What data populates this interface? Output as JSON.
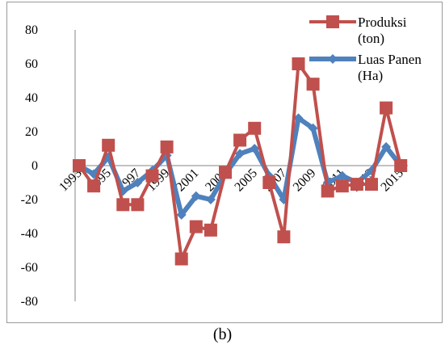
{
  "chart_data": {
    "type": "line",
    "title": "",
    "xlabel": "",
    "ylabel": "",
    "x": [
      "1993",
      "1994",
      "1995",
      "1996",
      "1997",
      "1998",
      "1999",
      "2000",
      "2001",
      "2002",
      "2003",
      "2004",
      "2005",
      "2006",
      "2007",
      "2008",
      "2009",
      "2010",
      "2011",
      "2012",
      "2013",
      "2014",
      "2015"
    ],
    "x_tick_labels": [
      "1993",
      "1995",
      "1997",
      "1999",
      "2001",
      "2003",
      "2005",
      "2007",
      "2009",
      "2011",
      "2013",
      "2015"
    ],
    "y_ticks": [
      80,
      60,
      40,
      20,
      0,
      -20,
      -40,
      -60,
      -80
    ],
    "ylim": [
      -80,
      80
    ],
    "grid": false,
    "legend_position": "top-right",
    "series": [
      {
        "name": "Luas Panen (Ha)",
        "legend_lines": [
          "Luas Panen",
          "(Ha)"
        ],
        "color": "#4f81bd",
        "marker": "diamond",
        "values": [
          0,
          -5,
          5,
          -15,
          -10,
          -3,
          6,
          -29,
          -18,
          -20,
          -5,
          7,
          10,
          -6,
          -20,
          28,
          22,
          -10,
          -6,
          -10,
          -3,
          11,
          0
        ]
      },
      {
        "name": "Produksi (ton)",
        "legend_lines": [
          "Produksi",
          "(ton)"
        ],
        "color": "#c0504d",
        "marker": "square",
        "values": [
          0,
          -12,
          12,
          -23,
          -23,
          -6,
          11,
          -55,
          -36,
          -38,
          -4,
          15,
          22,
          -10,
          -42,
          60,
          48,
          -15,
          -12,
          -11,
          -11,
          34,
          0
        ]
      }
    ]
  },
  "caption": "(b)"
}
